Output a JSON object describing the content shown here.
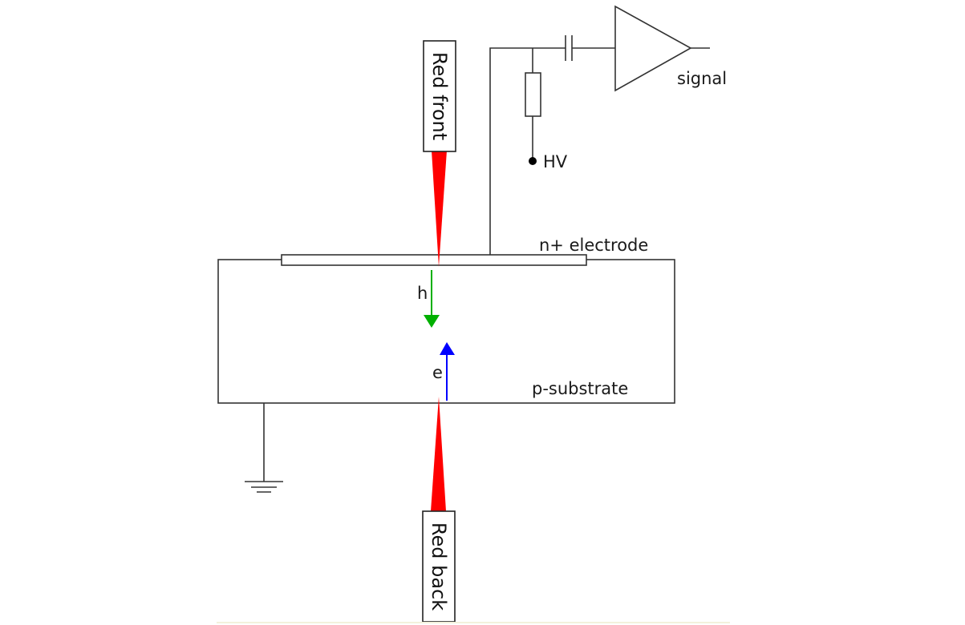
{
  "labels": {
    "red_front": "Red front",
    "red_back": "Red back",
    "hv": "HV",
    "signal": "signal",
    "electrode": "n+ electrode",
    "substrate": "p-substrate",
    "hole": "h",
    "electron": "e"
  },
  "colors": {
    "laser": "#ff0000",
    "hole_arrow": "#00b000",
    "electron_arrow": "#0000ff",
    "line": "#333333"
  }
}
